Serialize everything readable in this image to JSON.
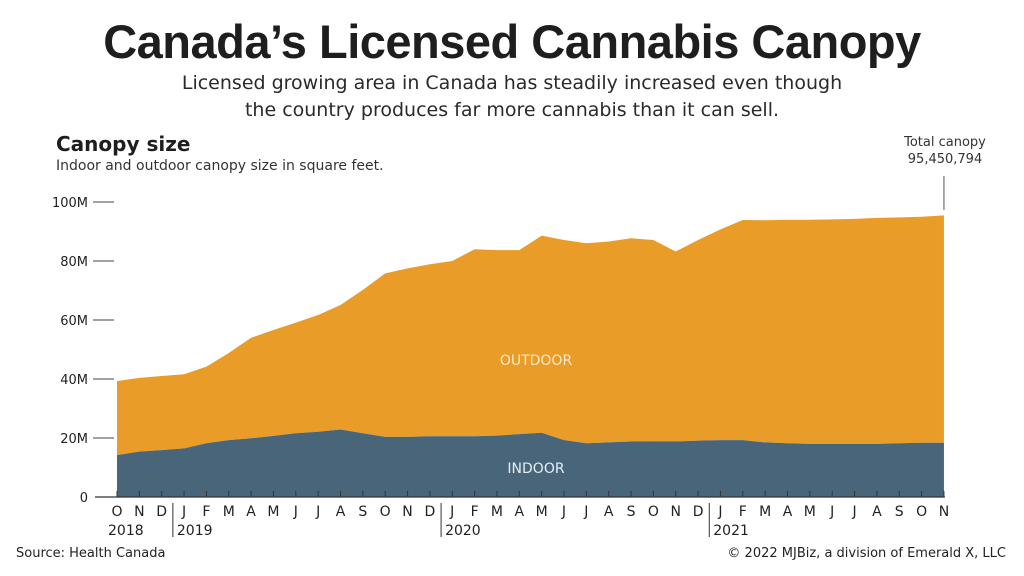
{
  "header": {
    "title": "Canada’s Licensed Cannabis Canopy",
    "subtitle_line1": "Licensed growing area in Canada has steadily increased even though",
    "subtitle_line2": "the country produces far more cannabis than it can sell."
  },
  "footer": {
    "source": "Source: Health Canada",
    "credit": "© 2022 MJBiz, a division of Emerald X, LLC"
  },
  "chart_data": {
    "type": "area",
    "stacked": true,
    "title": "Canopy size",
    "subtitle": "Indoor and outdoor canopy size in square feet.",
    "ylabel": "",
    "xlabel": "",
    "ylim": [
      0,
      100
    ],
    "yticks": [
      0,
      20,
      40,
      60,
      80,
      100
    ],
    "ytick_labels": [
      "0",
      "20M",
      "40M",
      "60M",
      "80M",
      "100M"
    ],
    "x_month_labels": [
      "O",
      "N",
      "D",
      "J",
      "F",
      "M",
      "A",
      "M",
      "J",
      "J",
      "A",
      "S",
      "O",
      "N",
      "D",
      "J",
      "F",
      "M",
      "A",
      "M",
      "J",
      "J",
      "A",
      "S",
      "O",
      "N",
      "D",
      "J",
      "F",
      "M",
      "A",
      "M",
      "J",
      "J",
      "A",
      "S",
      "O",
      "N"
    ],
    "year_labels": [
      {
        "label": "2018",
        "index": 0
      },
      {
        "label": "2019",
        "index": 3
      },
      {
        "label": "2020",
        "index": 15
      },
      {
        "label": "2021",
        "index": 27
      }
    ],
    "annotation": {
      "label": "Total canopy",
      "value": "95,450,794",
      "index": 37
    },
    "series": [
      {
        "name": "INDOOR",
        "color": "#48657a",
        "label_color": "#e6edf2",
        "values": [
          14.2,
          15.4,
          15.9,
          16.5,
          18.2,
          19.3,
          19.9,
          20.7,
          21.6,
          22.1,
          22.9,
          21.6,
          20.4,
          20.4,
          20.6,
          20.6,
          20.6,
          20.8,
          21.3,
          21.8,
          19.3,
          18.2,
          18.5,
          18.8,
          18.9,
          18.8,
          19.1,
          19.3,
          19.3,
          18.5,
          18.2,
          18.0,
          18.0,
          18.0,
          18.0,
          18.2,
          18.4,
          18.4
        ]
      },
      {
        "name": "OUTDOOR",
        "color": "#e99d28",
        "label_color": "#fbe9c8",
        "totals": [
          39.3,
          40.4,
          41.0,
          41.6,
          44.2,
          48.8,
          54.0,
          56.6,
          59.1,
          61.7,
          65.1,
          70.2,
          75.8,
          77.5,
          78.9,
          80.0,
          84.0,
          83.7,
          83.7,
          88.6,
          87.1,
          86.0,
          86.6,
          87.7,
          87.1,
          83.2,
          87.1,
          90.7,
          93.9,
          93.8,
          94.0,
          94.0,
          94.1,
          94.3,
          94.6,
          94.8,
          95.0,
          95.45
        ]
      }
    ],
    "units": "millions of square feet",
    "grid": false,
    "legend": "inline"
  }
}
